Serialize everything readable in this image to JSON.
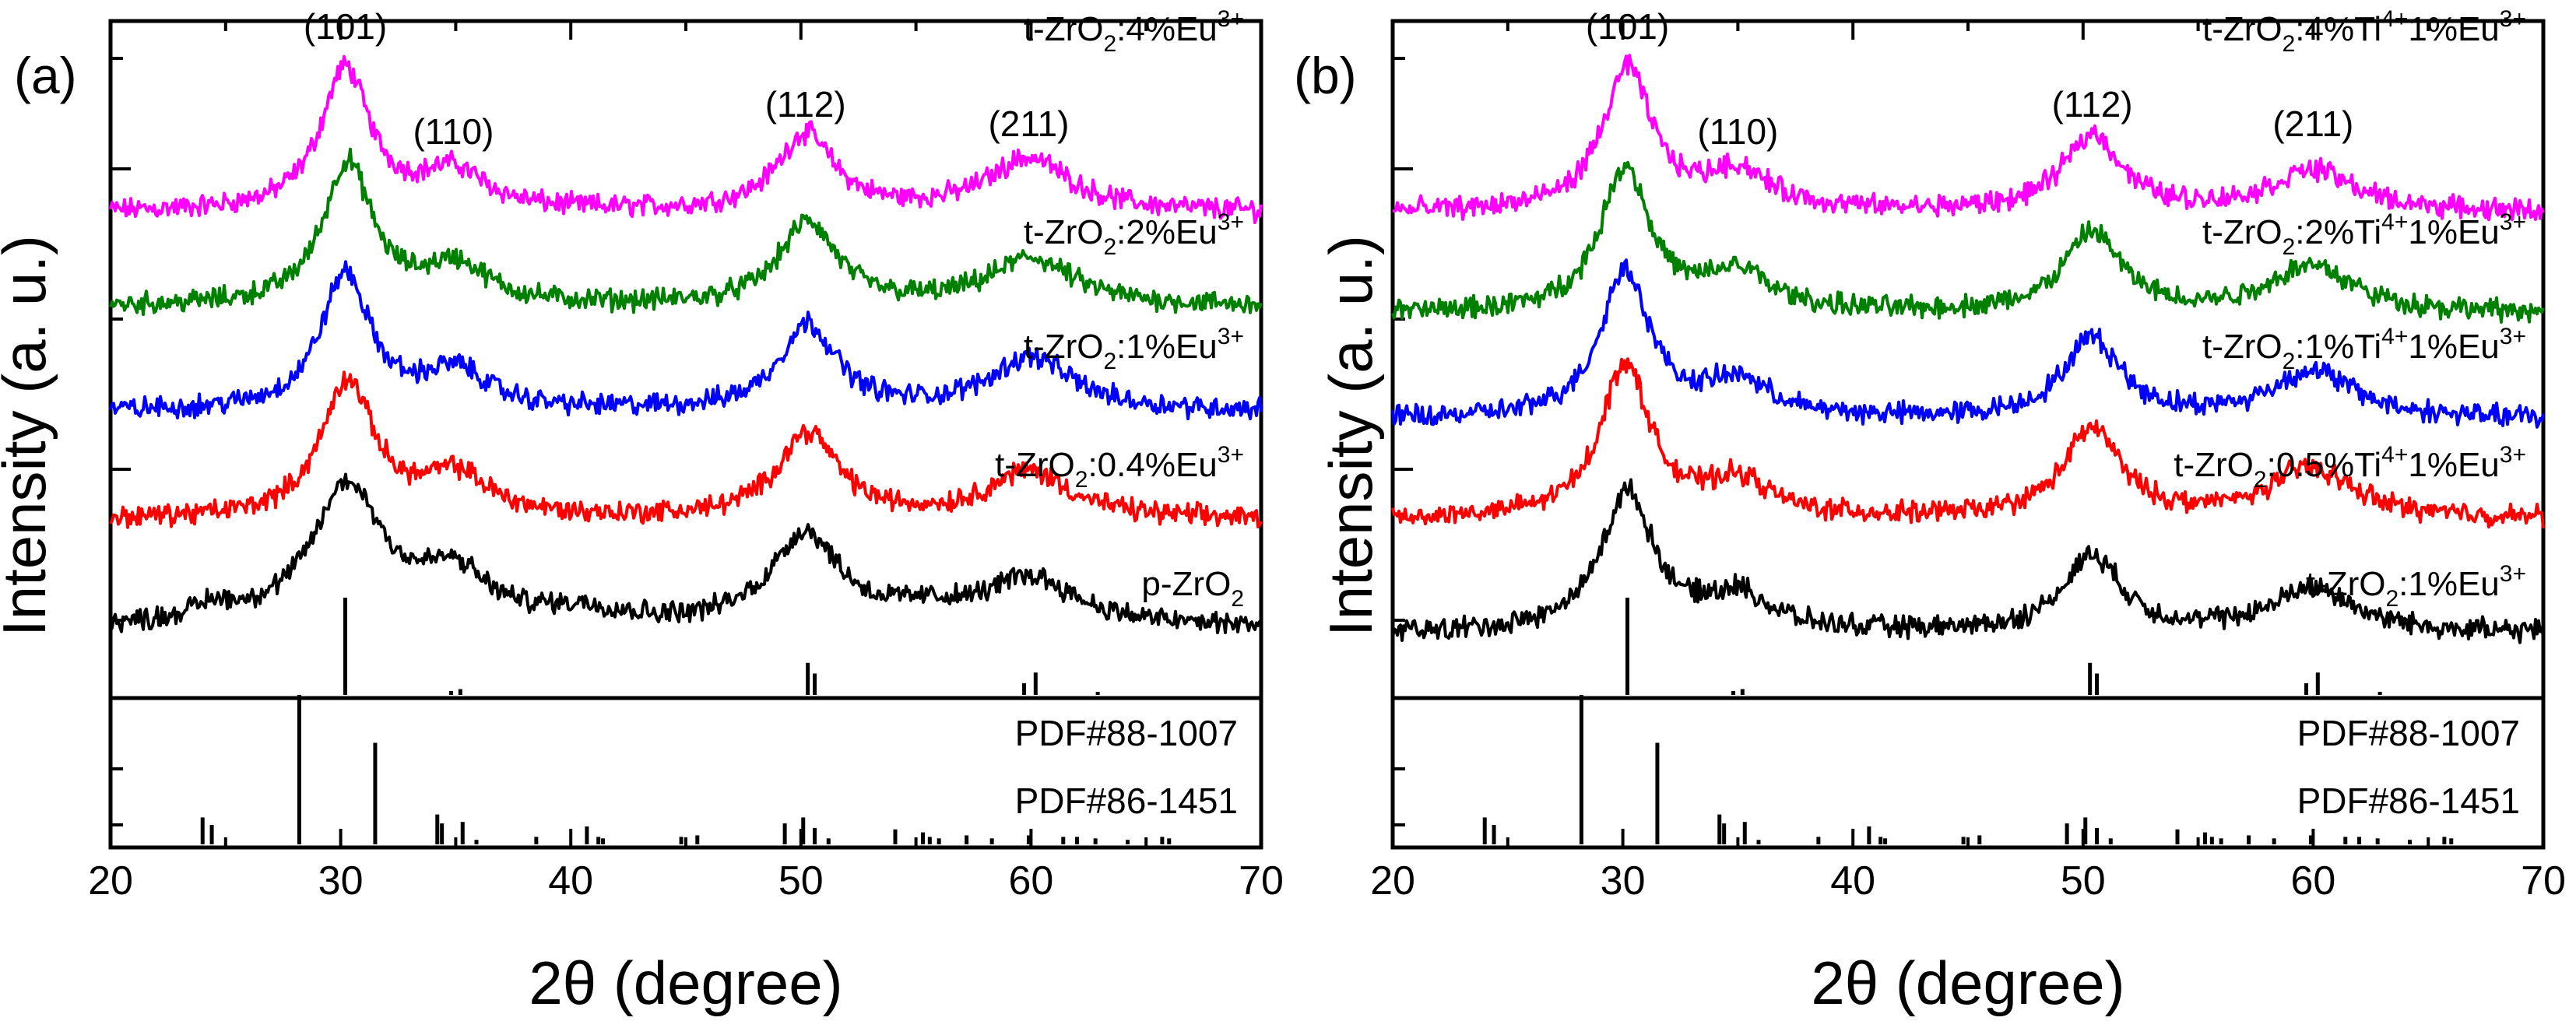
{
  "chart_data": [
    {
      "type": "line",
      "panel_label": "(a)",
      "xlabel": "2θ (degree)",
      "ylabel": "Intensity (a. u.)",
      "xlim": [
        20,
        70
      ],
      "xticks": [
        20,
        30,
        40,
        50,
        60,
        70
      ],
      "peak_labels": [
        {
          "text": "(101)",
          "x": 30.2
        },
        {
          "text": "(110)",
          "x": 34.9
        },
        {
          "text": "(112)",
          "x": 50.2
        },
        {
          "text": "(211)",
          "x": 59.9
        }
      ],
      "series": [
        {
          "name": "t-ZrO2:4%Eu3+",
          "label_main": "t-ZrO",
          "label_sub": "2",
          "label_rest": ":4%Eu",
          "label_sup": "3+",
          "color": "#ff00ff",
          "baseline": 0.9,
          "peaks": [
            {
              "x": 30.2,
              "height": 4.8,
              "width": 1.3
            },
            {
              "x": 34.9,
              "height": 1.3,
              "width": 1.7
            },
            {
              "x": 50.2,
              "height": 2.6,
              "width": 1.5
            },
            {
              "x": 59.9,
              "height": 1.8,
              "width": 2.2
            }
          ]
        },
        {
          "name": "t-ZrO2:2%Eu3+",
          "label_main": "t-ZrO",
          "label_sub": "2",
          "label_rest": ":2%Eu",
          "label_sup": "3+",
          "color": "#008000",
          "baseline": 0.9,
          "peaks": [
            {
              "x": 30.3,
              "height": 4.8,
              "width": 1.3
            },
            {
              "x": 35.0,
              "height": 1.3,
              "width": 1.7
            },
            {
              "x": 50.3,
              "height": 2.8,
              "width": 1.5
            },
            {
              "x": 60.0,
              "height": 1.6,
              "width": 2.2
            }
          ]
        },
        {
          "name": "t-ZrO2:1%Eu3+",
          "label_main": "t-ZrO",
          "label_sub": "2",
          "label_rest": ":1%Eu",
          "label_sup": "3+",
          "color": "#0000ff",
          "baseline": 0.9,
          "peaks": [
            {
              "x": 30.2,
              "height": 4.6,
              "width": 1.3
            },
            {
              "x": 35.0,
              "height": 1.3,
              "width": 1.7
            },
            {
              "x": 50.3,
              "height": 2.9,
              "width": 1.5
            },
            {
              "x": 60.0,
              "height": 1.8,
              "width": 2.2
            }
          ]
        },
        {
          "name": "t-ZrO2:0.4%Eu3+",
          "label_main": "t-ZrO",
          "label_sub": "2",
          "label_rest": ":0.4%Eu",
          "label_sup": "3+",
          "color": "#ff0000",
          "baseline": 0.9,
          "peaks": [
            {
              "x": 30.3,
              "height": 4.6,
              "width": 1.4
            },
            {
              "x": 35.0,
              "height": 1.4,
              "width": 1.8
            },
            {
              "x": 50.3,
              "height": 2.9,
              "width": 1.6
            },
            {
              "x": 59.9,
              "height": 1.6,
              "width": 2.2
            }
          ]
        },
        {
          "name": "p-ZrO2",
          "label_main": "p-ZrO",
          "label_sub": "2",
          "label_rest": "",
          "label_sup": "",
          "color": "#000000",
          "baseline": 0.9,
          "peaks": [
            {
              "x": 24.5,
              "height": 0.5,
              "width": 1.2
            },
            {
              "x": 30.3,
              "height": 4.7,
              "width": 1.9
            },
            {
              "x": 34.9,
              "height": 1.6,
              "width": 1.8
            },
            {
              "x": 40.5,
              "height": 0.45,
              "width": 2.2
            },
            {
              "x": 50.2,
              "height": 3.1,
              "width": 1.8
            },
            {
              "x": 55.5,
              "height": 0.4,
              "width": 2.0
            },
            {
              "x": 60.0,
              "height": 1.6,
              "width": 2.4
            }
          ]
        }
      ],
      "reference_patterns": [
        {
          "name": "PDF#88-1007",
          "lines": [
            {
              "x": 30.2,
              "i": 100
            },
            {
              "x": 34.8,
              "i": 4
            },
            {
              "x": 35.2,
              "i": 6
            },
            {
              "x": 50.3,
              "i": 33
            },
            {
              "x": 50.6,
              "i": 22
            },
            {
              "x": 59.7,
              "i": 12
            },
            {
              "x": 60.2,
              "i": 23
            },
            {
              "x": 62.9,
              "i": 2
            }
          ]
        },
        {
          "name": "PDF#86-1451",
          "lines": [
            {
              "x": 24.0,
              "i": 18
            },
            {
              "x": 24.4,
              "i": 13
            },
            {
              "x": 28.2,
              "i": 100
            },
            {
              "x": 31.5,
              "i": 68
            },
            {
              "x": 34.2,
              "i": 20
            },
            {
              "x": 34.4,
              "i": 14
            },
            {
              "x": 35.3,
              "i": 15
            },
            {
              "x": 35.9,
              "i": 3
            },
            {
              "x": 38.5,
              "i": 5
            },
            {
              "x": 40.7,
              "i": 12
            },
            {
              "x": 41.2,
              "i": 5
            },
            {
              "x": 41.4,
              "i": 4
            },
            {
              "x": 44.8,
              "i": 5
            },
            {
              "x": 45.5,
              "i": 6
            },
            {
              "x": 49.3,
              "i": 14
            },
            {
              "x": 50.1,
              "i": 18
            },
            {
              "x": 50.6,
              "i": 11
            },
            {
              "x": 51.2,
              "i": 4
            },
            {
              "x": 54.1,
              "i": 10
            },
            {
              "x": 55.3,
              "i": 8
            },
            {
              "x": 55.6,
              "i": 5
            },
            {
              "x": 56.0,
              "i": 4
            },
            {
              "x": 57.2,
              "i": 6
            },
            {
              "x": 58.3,
              "i": 4
            },
            {
              "x": 59.9,
              "i": 6
            },
            {
              "x": 61.4,
              "i": 5
            },
            {
              "x": 62.0,
              "i": 5
            },
            {
              "x": 62.8,
              "i": 4
            },
            {
              "x": 64.2,
              "i": 3
            },
            {
              "x": 65.7,
              "i": 5
            },
            {
              "x": 66.0,
              "i": 4
            }
          ]
        }
      ]
    },
    {
      "type": "line",
      "panel_label": "(b)",
      "xlabel": "2θ (degree)",
      "ylabel": "Intensity (a. u.)",
      "xlim": [
        20,
        70
      ],
      "xticks": [
        20,
        30,
        40,
        50,
        60,
        70
      ],
      "peak_labels": [
        {
          "text": "(101)",
          "x": 30.2
        },
        {
          "text": "(110)",
          "x": 35.0
        },
        {
          "text": "(112)",
          "x": 50.4
        },
        {
          "text": "(211)",
          "x": 60.0
        }
      ],
      "series": [
        {
          "name": "t-ZrO2:4%Ti4+1%Eu3+",
          "label_main": "t-ZrO",
          "label_sub": "2",
          "label_rest": ":4%Ti",
          "label_sup": "4+",
          "label_rest2": "1%Eu",
          "label_sup2": "3+",
          "color": "#ff00ff",
          "baseline": 0.9,
          "peaks": [
            {
              "x": 30.2,
              "height": 4.8,
              "width": 1.3
            },
            {
              "x": 35.0,
              "height": 1.3,
              "width": 1.7
            },
            {
              "x": 50.4,
              "height": 2.6,
              "width": 1.5
            },
            {
              "x": 60.0,
              "height": 1.4,
              "width": 2.2
            }
          ]
        },
        {
          "name": "t-ZrO2:2%Ti4+1%Eu3+",
          "label_main": "t-ZrO",
          "label_sub": "2",
          "label_rest": ":2%Ti",
          "label_sup": "4+",
          "label_rest2": "1%Eu",
          "label_sup2": "3+",
          "color": "#008000",
          "baseline": 0.9,
          "peaks": [
            {
              "x": 30.1,
              "height": 4.9,
              "width": 1.3
            },
            {
              "x": 35.0,
              "height": 1.3,
              "width": 1.7
            },
            {
              "x": 50.4,
              "height": 2.7,
              "width": 1.5
            },
            {
              "x": 59.9,
              "height": 1.6,
              "width": 2.2
            }
          ]
        },
        {
          "name": "t-ZrO2:1%Ti4+1%Eu3+",
          "label_main": "t-ZrO",
          "label_sub": "2",
          "label_rest": ":1%Ti",
          "label_sup": "4+",
          "label_rest2": "1%Eu",
          "label_sup2": "3+",
          "color": "#0000ff",
          "baseline": 0.9,
          "peaks": [
            {
              "x": 30.1,
              "height": 5.0,
              "width": 1.3
            },
            {
              "x": 35.0,
              "height": 1.2,
              "width": 1.7
            },
            {
              "x": 50.4,
              "height": 2.7,
              "width": 1.5
            },
            {
              "x": 60.0,
              "height": 1.6,
              "width": 2.2
            }
          ]
        },
        {
          "name": "t-ZrO2:0.5%Ti4+1%Eu3+",
          "label_main": "t-ZrO",
          "label_sub": "2",
          "label_rest": ":0.5%Ti",
          "label_sup": "4+",
          "label_rest2": "1%Eu",
          "label_sup2": "3+",
          "color": "#ff0000",
          "baseline": 0.9,
          "peaks": [
            {
              "x": 30.1,
              "height": 5.2,
              "width": 1.3
            },
            {
              "x": 35.0,
              "height": 1.2,
              "width": 1.7
            },
            {
              "x": 50.4,
              "height": 3.0,
              "width": 1.5
            },
            {
              "x": 59.9,
              "height": 1.7,
              "width": 2.2
            }
          ]
        },
        {
          "name": "t-ZrO2:1%Eu3+",
          "label_main": "t-ZrO",
          "label_sub": "2",
          "label_rest": ":1%Eu",
          "label_sup": "3+",
          "label_rest2": "",
          "label_sup2": "",
          "color": "#000000",
          "baseline": 0.9,
          "peaks": [
            {
              "x": 30.2,
              "height": 4.7,
              "width": 1.4
            },
            {
              "x": 35.0,
              "height": 1.2,
              "width": 1.7
            },
            {
              "x": 50.4,
              "height": 2.6,
              "width": 1.5
            },
            {
              "x": 60.0,
              "height": 1.5,
              "width": 2.2
            }
          ]
        }
      ],
      "reference_patterns": [
        {
          "name": "PDF#88-1007",
          "lines": [
            {
              "x": 30.2,
              "i": 100
            },
            {
              "x": 34.8,
              "i": 4
            },
            {
              "x": 35.2,
              "i": 6
            },
            {
              "x": 50.3,
              "i": 33
            },
            {
              "x": 50.6,
              "i": 22
            },
            {
              "x": 59.7,
              "i": 12
            },
            {
              "x": 60.2,
              "i": 23
            },
            {
              "x": 62.9,
              "i": 2
            }
          ]
        },
        {
          "name": "PDF#86-1451",
          "lines": [
            {
              "x": 24.0,
              "i": 18
            },
            {
              "x": 24.4,
              "i": 13
            },
            {
              "x": 28.2,
              "i": 100
            },
            {
              "x": 31.5,
              "i": 68
            },
            {
              "x": 34.2,
              "i": 20
            },
            {
              "x": 34.4,
              "i": 14
            },
            {
              "x": 35.3,
              "i": 15
            },
            {
              "x": 35.9,
              "i": 3
            },
            {
              "x": 38.5,
              "i": 5
            },
            {
              "x": 40.7,
              "i": 12
            },
            {
              "x": 41.2,
              "i": 5
            },
            {
              "x": 41.4,
              "i": 4
            },
            {
              "x": 44.8,
              "i": 5
            },
            {
              "x": 45.5,
              "i": 6
            },
            {
              "x": 49.3,
              "i": 14
            },
            {
              "x": 50.1,
              "i": 18
            },
            {
              "x": 50.6,
              "i": 11
            },
            {
              "x": 51.2,
              "i": 4
            },
            {
              "x": 54.1,
              "i": 10
            },
            {
              "x": 55.3,
              "i": 8
            },
            {
              "x": 55.6,
              "i": 5
            },
            {
              "x": 56.0,
              "i": 4
            },
            {
              "x": 57.2,
              "i": 6
            },
            {
              "x": 58.3,
              "i": 4
            },
            {
              "x": 59.9,
              "i": 6
            },
            {
              "x": 61.4,
              "i": 5
            },
            {
              "x": 62.0,
              "i": 5
            },
            {
              "x": 62.8,
              "i": 4
            },
            {
              "x": 64.2,
              "i": 3
            },
            {
              "x": 65.7,
              "i": 5
            },
            {
              "x": 66.0,
              "i": 4
            }
          ]
        }
      ]
    }
  ]
}
